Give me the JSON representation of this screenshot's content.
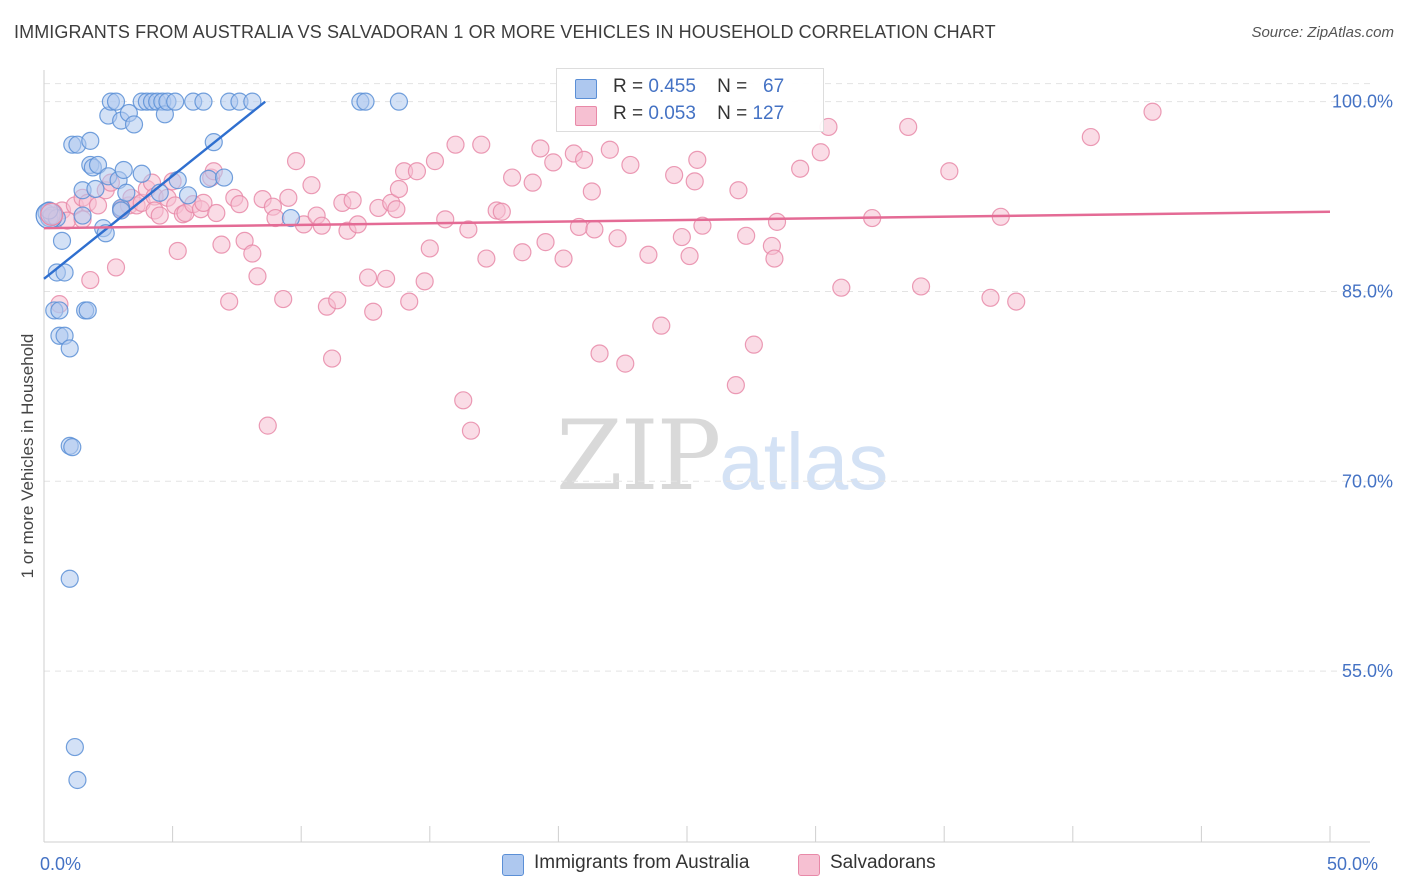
{
  "title": "IMMIGRANTS FROM AUSTRALIA VS SALVADORAN 1 OR MORE VEHICLES IN HOUSEHOLD CORRELATION CHART",
  "source": "Source: ZipAtlas.com",
  "colors": {
    "blue_fill": "#aec8ef",
    "blue_stroke": "#5b8fd6",
    "blue_line": "#2f6fcf",
    "pink_fill": "#f6c0d2",
    "pink_stroke": "#e889a8",
    "pink_line": "#e46b95",
    "axis_text": "#4472c4",
    "grid": "#e3e3e3"
  },
  "stats": {
    "australia": {
      "r_label": "R =",
      "r_value": "0.455",
      "n_label": "N =",
      "n_value": "67"
    },
    "salvadoran": {
      "r_label": "R =",
      "r_value": "0.053",
      "n_label": "N =",
      "n_value": "127"
    }
  },
  "watermark": {
    "zip": "ZIP",
    "atlas": "atlas"
  },
  "chart_data": {
    "type": "scatter",
    "title": "IMMIGRANTS FROM AUSTRALIA VS SALVADORAN 1 OR MORE VEHICLES IN HOUSEHOLD CORRELATION CHART",
    "xlabel": "",
    "ylabel": "1 or more Vehicles in Household",
    "xlim": [
      0,
      50
    ],
    "ylim": [
      41.5,
      102.5
    ],
    "x_tick_labels": [
      {
        "value": 0,
        "label": "0.0%"
      },
      {
        "value": 50,
        "label": "50.0%"
      }
    ],
    "y_tick_labels": [
      {
        "value": 100,
        "label": "100.0%"
      },
      {
        "value": 85,
        "label": "85.0%"
      },
      {
        "value": 70,
        "label": "70.0%"
      },
      {
        "value": 55,
        "label": "55.0%"
      }
    ],
    "x_minor_ticks": [
      5,
      10,
      15,
      20,
      25,
      30,
      35,
      40,
      45,
      50
    ],
    "grid": true,
    "legend": "bottom-center",
    "series": [
      {
        "name": "Immigrants from Australia",
        "color": "blue",
        "trend": {
          "x": [
            0,
            8.6
          ],
          "y": [
            86.0,
            100.0
          ]
        },
        "points": [
          [
            0.1,
            91.2
          ],
          [
            0.2,
            90.8
          ],
          [
            0.3,
            91.0
          ],
          [
            0.4,
            83.5
          ],
          [
            0.5,
            86.5
          ],
          [
            0.6,
            83.5
          ],
          [
            0.6,
            81.5
          ],
          [
            0.7,
            89.0
          ],
          [
            0.5,
            90.8
          ],
          [
            0.8,
            86.5
          ],
          [
            0.8,
            81.5
          ],
          [
            1.0,
            80.5
          ],
          [
            1.0,
            72.8
          ],
          [
            1.1,
            72.7
          ],
          [
            1.0,
            62.3
          ],
          [
            1.2,
            49.0
          ],
          [
            1.3,
            46.4
          ],
          [
            1.1,
            96.6
          ],
          [
            1.3,
            96.6
          ],
          [
            1.5,
            93.0
          ],
          [
            1.5,
            91.0
          ],
          [
            1.6,
            83.5
          ],
          [
            1.7,
            83.5
          ],
          [
            1.8,
            95.0
          ],
          [
            1.8,
            96.9
          ],
          [
            1.9,
            94.8
          ],
          [
            2.0,
            93.1
          ],
          [
            2.1,
            95.0
          ],
          [
            2.3,
            90.0
          ],
          [
            2.4,
            89.6
          ],
          [
            2.5,
            98.9
          ],
          [
            2.5,
            94.1
          ],
          [
            2.6,
            100.0
          ],
          [
            2.8,
            100.0
          ],
          [
            2.9,
            93.8
          ],
          [
            3.0,
            98.5
          ],
          [
            3.0,
            91.6
          ],
          [
            3.0,
            91.4
          ],
          [
            3.1,
            94.6
          ],
          [
            3.2,
            92.8
          ],
          [
            3.3,
            99.1
          ],
          [
            3.5,
            98.2
          ],
          [
            3.8,
            94.3
          ],
          [
            3.8,
            100.0
          ],
          [
            4.0,
            100.0
          ],
          [
            4.2,
            100.0
          ],
          [
            4.4,
            100.0
          ],
          [
            4.5,
            92.8
          ],
          [
            4.6,
            100.0
          ],
          [
            4.7,
            99.0
          ],
          [
            4.8,
            100.0
          ],
          [
            5.1,
            100.0
          ],
          [
            5.2,
            93.8
          ],
          [
            5.6,
            92.6
          ],
          [
            5.8,
            100.0
          ],
          [
            6.2,
            100.0
          ],
          [
            6.4,
            93.9
          ],
          [
            6.6,
            96.8
          ],
          [
            7.0,
            94.0
          ],
          [
            7.2,
            100.0
          ],
          [
            7.6,
            100.0
          ],
          [
            8.1,
            100.0
          ],
          [
            9.6,
            90.8
          ],
          [
            12.3,
            100.0
          ],
          [
            12.5,
            100.0
          ],
          [
            13.8,
            100.0
          ],
          [
            0.2,
            91.4
          ]
        ]
      },
      {
        "name": "Salvadorans",
        "color": "pink",
        "trend": {
          "x": [
            0,
            50
          ],
          "y": [
            90.0,
            91.3
          ]
        },
        "points": [
          [
            0.4,
            91.0
          ],
          [
            0.6,
            84.0
          ],
          [
            0.7,
            91.4
          ],
          [
            0.9,
            90.6
          ],
          [
            1.2,
            91.8
          ],
          [
            1.5,
            92.4
          ],
          [
            1.5,
            90.7
          ],
          [
            1.7,
            92.0
          ],
          [
            1.8,
            85.9
          ],
          [
            2.1,
            91.8
          ],
          [
            2.4,
            93.0
          ],
          [
            2.6,
            93.6
          ],
          [
            2.8,
            86.9
          ],
          [
            3.0,
            91.5
          ],
          [
            3.3,
            91.8
          ],
          [
            3.4,
            92.4
          ],
          [
            3.6,
            91.8
          ],
          [
            3.8,
            92.0
          ],
          [
            4.0,
            93.1
          ],
          [
            4.2,
            93.6
          ],
          [
            4.3,
            92.5
          ],
          [
            4.3,
            91.4
          ],
          [
            4.5,
            91.0
          ],
          [
            4.8,
            92.4
          ],
          [
            5.0,
            93.7
          ],
          [
            5.1,
            91.8
          ],
          [
            5.2,
            88.2
          ],
          [
            5.4,
            91.1
          ],
          [
            5.5,
            91.2
          ],
          [
            5.8,
            91.9
          ],
          [
            6.1,
            91.5
          ],
          [
            6.2,
            92.0
          ],
          [
            6.5,
            94.0
          ],
          [
            6.6,
            94.5
          ],
          [
            6.7,
            91.2
          ],
          [
            6.9,
            88.7
          ],
          [
            7.2,
            84.2
          ],
          [
            7.4,
            92.4
          ],
          [
            7.6,
            91.9
          ],
          [
            7.8,
            89.0
          ],
          [
            8.1,
            88.0
          ],
          [
            8.3,
            86.2
          ],
          [
            8.5,
            92.3
          ],
          [
            8.7,
            74.4
          ],
          [
            8.9,
            91.7
          ],
          [
            9.0,
            90.8
          ],
          [
            9.3,
            84.4
          ],
          [
            9.5,
            92.4
          ],
          [
            9.8,
            95.3
          ],
          [
            10.1,
            90.3
          ],
          [
            10.4,
            93.4
          ],
          [
            10.6,
            91.0
          ],
          [
            10.8,
            90.2
          ],
          [
            11.0,
            83.8
          ],
          [
            11.2,
            79.7
          ],
          [
            11.4,
            84.3
          ],
          [
            11.6,
            92.0
          ],
          [
            11.8,
            89.8
          ],
          [
            12.0,
            92.2
          ],
          [
            12.2,
            90.3
          ],
          [
            12.6,
            86.1
          ],
          [
            12.8,
            83.4
          ],
          [
            13.0,
            91.6
          ],
          [
            13.3,
            86.0
          ],
          [
            13.5,
            92.0
          ],
          [
            13.7,
            91.5
          ],
          [
            13.8,
            93.1
          ],
          [
            14.0,
            94.5
          ],
          [
            14.2,
            84.2
          ],
          [
            14.5,
            94.5
          ],
          [
            14.8,
            85.8
          ],
          [
            15.0,
            88.4
          ],
          [
            15.2,
            95.3
          ],
          [
            15.6,
            90.7
          ],
          [
            16.0,
            96.6
          ],
          [
            16.3,
            76.4
          ],
          [
            16.5,
            89.9
          ],
          [
            16.6,
            74.0
          ],
          [
            17.0,
            96.6
          ],
          [
            17.2,
            87.6
          ],
          [
            17.6,
            91.4
          ],
          [
            17.8,
            91.3
          ],
          [
            18.2,
            94.0
          ],
          [
            18.6,
            88.1
          ],
          [
            19.0,
            93.6
          ],
          [
            19.3,
            96.3
          ],
          [
            19.5,
            88.9
          ],
          [
            19.8,
            95.2
          ],
          [
            20.2,
            87.6
          ],
          [
            20.6,
            95.9
          ],
          [
            20.8,
            90.1
          ],
          [
            21.0,
            95.4
          ],
          [
            21.3,
            92.9
          ],
          [
            21.4,
            89.9
          ],
          [
            21.6,
            80.1
          ],
          [
            22.0,
            96.2
          ],
          [
            22.3,
            89.2
          ],
          [
            22.6,
            79.3
          ],
          [
            22.8,
            95.0
          ],
          [
            23.5,
            87.9
          ],
          [
            24.0,
            82.3
          ],
          [
            24.5,
            94.2
          ],
          [
            24.8,
            89.3
          ],
          [
            25.1,
            87.8
          ],
          [
            25.3,
            93.7
          ],
          [
            25.6,
            90.2
          ],
          [
            25.4,
            95.4
          ],
          [
            26.9,
            77.6
          ],
          [
            27.0,
            93.0
          ],
          [
            27.3,
            89.4
          ],
          [
            27.6,
            80.8
          ],
          [
            28.3,
            88.6
          ],
          [
            28.4,
            87.6
          ],
          [
            28.5,
            90.5
          ],
          [
            29.4,
            94.7
          ],
          [
            30.2,
            96.0
          ],
          [
            30.5,
            98.0
          ],
          [
            31.0,
            85.3
          ],
          [
            32.2,
            90.8
          ],
          [
            33.6,
            98.0
          ],
          [
            34.1,
            85.4
          ],
          [
            35.2,
            94.5
          ],
          [
            36.8,
            84.5
          ],
          [
            37.2,
            90.9
          ],
          [
            37.8,
            84.2
          ],
          [
            40.7,
            97.2
          ],
          [
            43.1,
            99.2
          ]
        ]
      }
    ]
  },
  "legend": {
    "australia": "Immigrants from Australia",
    "salvadoran": "Salvadorans"
  }
}
